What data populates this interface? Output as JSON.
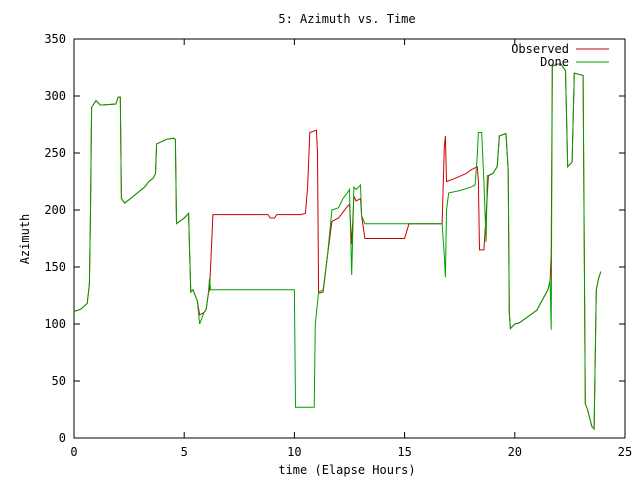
{
  "chart_data": {
    "type": "line",
    "title": "5: Azimuth vs. Time",
    "xlabel": "time (Elapse Hours)",
    "ylabel": "Azimuth",
    "xlim": [
      0,
      25
    ],
    "ylim": [
      0,
      350
    ],
    "xticks": [
      0,
      5,
      10,
      15,
      20,
      25
    ],
    "yticks": [
      0,
      50,
      100,
      150,
      200,
      250,
      300,
      350
    ],
    "xtick_labels": [
      "0",
      "5",
      "10",
      "15",
      "20",
      "25"
    ],
    "ytick_labels": [
      "0",
      "50",
      "100",
      "150",
      "200",
      "250",
      "300",
      "350"
    ],
    "grid": false,
    "legend_position": "top-right",
    "colors": {
      "observed": "#cc0000",
      "done": "#00a000",
      "axes": "#000000"
    },
    "series": [
      {
        "name": "Observed",
        "color": "#cc0000",
        "points": [
          [
            0,
            111
          ],
          [
            0.3,
            113
          ],
          [
            0.6,
            118
          ],
          [
            0.7,
            135
          ],
          [
            0.75,
            200
          ],
          [
            0.8,
            290
          ],
          [
            1.0,
            296
          ],
          [
            1.2,
            292
          ],
          [
            1.9,
            293
          ],
          [
            2.0,
            299
          ],
          [
            2.1,
            299
          ],
          [
            2.15,
            210
          ],
          [
            2.3,
            206
          ],
          [
            3.2,
            220
          ],
          [
            3.4,
            225
          ],
          [
            3.6,
            228
          ],
          [
            3.7,
            232
          ],
          [
            3.75,
            258
          ],
          [
            4.2,
            262
          ],
          [
            4.5,
            263
          ],
          [
            4.6,
            262
          ],
          [
            4.65,
            188
          ],
          [
            5.0,
            193
          ],
          [
            5.2,
            197
          ],
          [
            5.25,
            160
          ],
          [
            5.3,
            128
          ],
          [
            5.4,
            130
          ],
          [
            5.6,
            120
          ],
          [
            5.7,
            108
          ],
          [
            5.9,
            110
          ],
          [
            6.0,
            113
          ],
          [
            6.1,
            127
          ],
          [
            6.15,
            130
          ],
          [
            6.2,
            150
          ],
          [
            6.3,
            196
          ],
          [
            8.8,
            196
          ],
          [
            8.9,
            193
          ],
          [
            9.1,
            193
          ],
          [
            9.2,
            196
          ],
          [
            10.3,
            196
          ],
          [
            10.5,
            197
          ],
          [
            10.6,
            220
          ],
          [
            10.7,
            268
          ],
          [
            11.0,
            270
          ],
          [
            11.05,
            250
          ],
          [
            11.1,
            127
          ],
          [
            11.3,
            128
          ],
          [
            11.5,
            160
          ],
          [
            11.7,
            190
          ],
          [
            12.0,
            193
          ],
          [
            12.2,
            198
          ],
          [
            12.4,
            203
          ],
          [
            12.5,
            205
          ],
          [
            12.6,
            170
          ],
          [
            12.7,
            212
          ],
          [
            12.8,
            208
          ],
          [
            13.0,
            210
          ],
          [
            13.05,
            195
          ],
          [
            13.2,
            175
          ],
          [
            15.0,
            175
          ],
          [
            15.2,
            188
          ],
          [
            16.7,
            188
          ],
          [
            16.8,
            255
          ],
          [
            16.85,
            265
          ],
          [
            16.9,
            225
          ],
          [
            17.2,
            227
          ],
          [
            17.8,
            232
          ],
          [
            18.0,
            235
          ],
          [
            18.2,
            237
          ],
          [
            18.3,
            238
          ],
          [
            18.35,
            225
          ],
          [
            18.4,
            165
          ],
          [
            18.6,
            165
          ],
          [
            18.7,
            195
          ],
          [
            18.8,
            230
          ],
          [
            19.0,
            232
          ],
          [
            19.1,
            235
          ],
          [
            19.2,
            238
          ],
          [
            19.3,
            265
          ],
          [
            19.6,
            267
          ],
          [
            19.7,
            235
          ],
          [
            19.75,
            110
          ],
          [
            19.8,
            96
          ],
          [
            20.0,
            100
          ],
          [
            20.2,
            101
          ],
          [
            21.0,
            112
          ],
          [
            21.5,
            130
          ],
          [
            21.6,
            138
          ],
          [
            21.65,
            160
          ],
          [
            21.7,
            326
          ],
          [
            21.9,
            328
          ],
          [
            22.1,
            328
          ],
          [
            22.3,
            322
          ],
          [
            22.4,
            238
          ],
          [
            22.6,
            242
          ],
          [
            22.7,
            320
          ],
          [
            23.1,
            318
          ],
          [
            23.2,
            30
          ],
          [
            23.3,
            25
          ],
          [
            23.5,
            10
          ],
          [
            23.6,
            8
          ],
          [
            23.7,
            130
          ],
          [
            23.8,
            140
          ],
          [
            23.9,
            146
          ]
        ]
      },
      {
        "name": "Done",
        "color": "#00a000",
        "points": [
          [
            0,
            111
          ],
          [
            0.3,
            113
          ],
          [
            0.6,
            118
          ],
          [
            0.7,
            135
          ],
          [
            0.75,
            200
          ],
          [
            0.8,
            290
          ],
          [
            1.0,
            296
          ],
          [
            1.2,
            292
          ],
          [
            1.9,
            293
          ],
          [
            2.0,
            299
          ],
          [
            2.1,
            299
          ],
          [
            2.15,
            210
          ],
          [
            2.3,
            206
          ],
          [
            3.2,
            220
          ],
          [
            3.4,
            225
          ],
          [
            3.6,
            228
          ],
          [
            3.7,
            232
          ],
          [
            3.75,
            258
          ],
          [
            4.2,
            262
          ],
          [
            4.5,
            263
          ],
          [
            4.6,
            262
          ],
          [
            4.65,
            188
          ],
          [
            5.0,
            193
          ],
          [
            5.2,
            197
          ],
          [
            5.25,
            160
          ],
          [
            5.3,
            128
          ],
          [
            5.4,
            130
          ],
          [
            5.6,
            120
          ],
          [
            5.7,
            100
          ],
          [
            5.9,
            110
          ],
          [
            6.0,
            113
          ],
          [
            6.1,
            127
          ],
          [
            6.15,
            140
          ],
          [
            6.2,
            130
          ],
          [
            10.0,
            130
          ],
          [
            10.05,
            27
          ],
          [
            10.9,
            27
          ],
          [
            10.95,
            100
          ],
          [
            11.1,
            128
          ],
          [
            11.3,
            130
          ],
          [
            11.5,
            160
          ],
          [
            11.7,
            200
          ],
          [
            12.0,
            202
          ],
          [
            12.2,
            210
          ],
          [
            12.4,
            215
          ],
          [
            12.5,
            218
          ],
          [
            12.6,
            143
          ],
          [
            12.7,
            220
          ],
          [
            12.8,
            218
          ],
          [
            13.0,
            222
          ],
          [
            13.05,
            195
          ],
          [
            13.2,
            188
          ],
          [
            16.7,
            188
          ],
          [
            16.8,
            160
          ],
          [
            16.85,
            141
          ],
          [
            16.9,
            200
          ],
          [
            17.0,
            215
          ],
          [
            17.5,
            217
          ],
          [
            18.0,
            220
          ],
          [
            18.2,
            222
          ],
          [
            18.3,
            248
          ],
          [
            18.35,
            268
          ],
          [
            18.5,
            268
          ],
          [
            18.6,
            225
          ],
          [
            18.7,
            172
          ],
          [
            18.75,
            230
          ],
          [
            19.0,
            232
          ],
          [
            19.1,
            235
          ],
          [
            19.2,
            238
          ],
          [
            19.3,
            265
          ],
          [
            19.6,
            267
          ],
          [
            19.7,
            235
          ],
          [
            19.75,
            110
          ],
          [
            19.8,
            96
          ],
          [
            20.0,
            100
          ],
          [
            20.2,
            101
          ],
          [
            21.0,
            112
          ],
          [
            21.5,
            130
          ],
          [
            21.6,
            138
          ],
          [
            21.65,
            95
          ],
          [
            21.7,
            326
          ],
          [
            21.9,
            328
          ],
          [
            22.1,
            328
          ],
          [
            22.3,
            322
          ],
          [
            22.4,
            238
          ],
          [
            22.6,
            242
          ],
          [
            22.7,
            320
          ],
          [
            23.1,
            318
          ],
          [
            23.2,
            30
          ],
          [
            23.3,
            25
          ],
          [
            23.5,
            10
          ],
          [
            23.6,
            8
          ],
          [
            23.7,
            130
          ],
          [
            23.8,
            140
          ],
          [
            23.9,
            146
          ]
        ]
      }
    ]
  }
}
